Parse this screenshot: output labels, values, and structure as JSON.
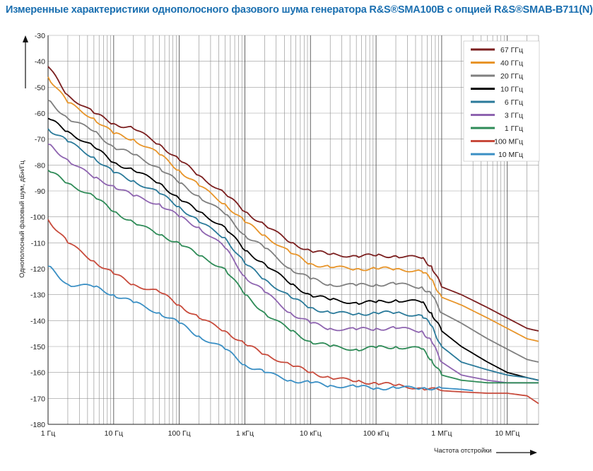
{
  "chart_data": {
    "type": "line",
    "title": "Измеренные характеристики однополосного фазового шума генератора R&S®SMA100B с опцией R&S®SMAB-B711(N)",
    "xlabel": "Частота отстройки",
    "ylabel": "Однополосный фазовый шум, дБн/Гц",
    "xscale": "log",
    "xlim": [
      1,
      30000000
    ],
    "ylim": [
      -180,
      -30
    ],
    "grid": true,
    "legend_position": "top-right",
    "x_ticks": [
      {
        "value": 1,
        "label": "1 Гц"
      },
      {
        "value": 10,
        "label": "10 Гц"
      },
      {
        "value": 100,
        "label": "100 Гц"
      },
      {
        "value": 1000,
        "label": "1 кГц"
      },
      {
        "value": 10000,
        "label": "10 кГц"
      },
      {
        "value": 100000,
        "label": "100 кГц"
      },
      {
        "value": 1000000,
        "label": "1 МГц"
      },
      {
        "value": 10000000,
        "label": "10 МГц"
      }
    ],
    "y_ticks": [
      {
        "value": -30,
        "label": "-30"
      },
      {
        "value": -40,
        "label": "-40"
      },
      {
        "value": -50,
        "label": "-50"
      },
      {
        "value": -60,
        "label": "-60"
      },
      {
        "value": -70,
        "label": "-70"
      },
      {
        "value": -80,
        "label": "-80"
      },
      {
        "value": -90,
        "label": "-90"
      },
      {
        "value": -100,
        "label": "-100"
      },
      {
        "value": -110,
        "label": "-110"
      },
      {
        "value": -120,
        "label": "-120"
      },
      {
        "value": -130,
        "label": "-130"
      },
      {
        "value": -140,
        "label": "-140"
      },
      {
        "value": -150,
        "label": "-150"
      },
      {
        "value": -160,
        "label": "-160"
      },
      {
        "value": -170,
        "label": "-170"
      },
      {
        "value": -180,
        "label": "-180"
      }
    ],
    "series": [
      {
        "name": "67 ГГц",
        "color": "#7b1f1f",
        "points": [
          [
            1,
            -42
          ],
          [
            2,
            -53
          ],
          [
            5,
            -60
          ],
          [
            10,
            -64
          ],
          [
            20,
            -66
          ],
          [
            50,
            -72
          ],
          [
            100,
            -78
          ],
          [
            200,
            -84
          ],
          [
            500,
            -91
          ],
          [
            1000,
            -98
          ],
          [
            2000,
            -103
          ],
          [
            5000,
            -110
          ],
          [
            10000,
            -113
          ],
          [
            20000,
            -114.5
          ],
          [
            50000,
            -115
          ],
          [
            100000,
            -115
          ],
          [
            200000,
            -115
          ],
          [
            500000,
            -116
          ],
          [
            700000,
            -119
          ],
          [
            1000000,
            -127
          ],
          [
            2000000,
            -130
          ],
          [
            5000000,
            -135
          ],
          [
            10000000,
            -139
          ],
          [
            20000000,
            -143
          ],
          [
            30000000,
            -144
          ]
        ]
      },
      {
        "name": "40 ГГц",
        "color": "#e8952a",
        "points": [
          [
            1,
            -46
          ],
          [
            2,
            -56
          ],
          [
            5,
            -62
          ],
          [
            10,
            -68
          ],
          [
            20,
            -70
          ],
          [
            50,
            -76
          ],
          [
            100,
            -82
          ],
          [
            200,
            -88
          ],
          [
            500,
            -95
          ],
          [
            1000,
            -102
          ],
          [
            2000,
            -107
          ],
          [
            5000,
            -114
          ],
          [
            10000,
            -118
          ],
          [
            20000,
            -119.5
          ],
          [
            50000,
            -120
          ],
          [
            100000,
            -120
          ],
          [
            200000,
            -120
          ],
          [
            500000,
            -121
          ],
          [
            700000,
            -124
          ],
          [
            1000000,
            -131
          ],
          [
            2000000,
            -134
          ],
          [
            5000000,
            -139
          ],
          [
            10000000,
            -143
          ],
          [
            20000000,
            -147
          ],
          [
            30000000,
            -148
          ]
        ]
      },
      {
        "name": "20 ГГц",
        "color": "#7f7f7f",
        "points": [
          [
            1,
            -55
          ],
          [
            2,
            -62
          ],
          [
            5,
            -67
          ],
          [
            10,
            -73
          ],
          [
            20,
            -76
          ],
          [
            50,
            -81
          ],
          [
            100,
            -87
          ],
          [
            200,
            -92
          ],
          [
            500,
            -99
          ],
          [
            1000,
            -107
          ],
          [
            2000,
            -112
          ],
          [
            5000,
            -120
          ],
          [
            10000,
            -124
          ],
          [
            20000,
            -126
          ],
          [
            50000,
            -126.5
          ],
          [
            100000,
            -126
          ],
          [
            200000,
            -126
          ],
          [
            500000,
            -127
          ],
          [
            700000,
            -130
          ],
          [
            1000000,
            -137
          ],
          [
            2000000,
            -141
          ],
          [
            5000000,
            -147
          ],
          [
            10000000,
            -151
          ],
          [
            20000000,
            -155
          ],
          [
            30000000,
            -156
          ]
        ]
      },
      {
        "name": "10 ГГц",
        "color": "#000000",
        "points": [
          [
            1,
            -62
          ],
          [
            2,
            -67
          ],
          [
            5,
            -73
          ],
          [
            10,
            -79
          ],
          [
            20,
            -82
          ],
          [
            50,
            -87
          ],
          [
            100,
            -93
          ],
          [
            200,
            -98
          ],
          [
            500,
            -104
          ],
          [
            1000,
            -113
          ],
          [
            2000,
            -118
          ],
          [
            5000,
            -126
          ],
          [
            10000,
            -130
          ],
          [
            20000,
            -132
          ],
          [
            50000,
            -133
          ],
          [
            100000,
            -133
          ],
          [
            200000,
            -132
          ],
          [
            500000,
            -133
          ],
          [
            700000,
            -137
          ],
          [
            1000000,
            -144
          ],
          [
            2000000,
            -150
          ],
          [
            5000000,
            -156
          ],
          [
            10000000,
            -160
          ],
          [
            20000000,
            -162
          ],
          [
            30000000,
            -163
          ]
        ]
      },
      {
        "name": "6 ГГц",
        "color": "#2a7a9a",
        "points": [
          [
            1,
            -66
          ],
          [
            2,
            -71
          ],
          [
            5,
            -77
          ],
          [
            10,
            -83
          ],
          [
            20,
            -86
          ],
          [
            50,
            -91
          ],
          [
            100,
            -96
          ],
          [
            200,
            -102
          ],
          [
            500,
            -108
          ],
          [
            1000,
            -118
          ],
          [
            2000,
            -124
          ],
          [
            5000,
            -131
          ],
          [
            10000,
            -135
          ],
          [
            20000,
            -137
          ],
          [
            50000,
            -137.5
          ],
          [
            100000,
            -137
          ],
          [
            200000,
            -137
          ],
          [
            500000,
            -138
          ],
          [
            700000,
            -142
          ],
          [
            1000000,
            -150
          ],
          [
            2000000,
            -156
          ],
          [
            5000000,
            -159
          ],
          [
            10000000,
            -161
          ],
          [
            20000000,
            -162
          ],
          [
            30000000,
            -163
          ]
        ]
      },
      {
        "name": "3 ГГц",
        "color": "#8e64b0",
        "points": [
          [
            1,
            -72
          ],
          [
            2,
            -78
          ],
          [
            5,
            -85
          ],
          [
            10,
            -88
          ],
          [
            20,
            -92
          ],
          [
            50,
            -95
          ],
          [
            100,
            -100
          ],
          [
            200,
            -104
          ],
          [
            500,
            -112
          ],
          [
            1000,
            -123
          ],
          [
            2000,
            -129
          ],
          [
            5000,
            -137
          ],
          [
            10000,
            -141
          ],
          [
            20000,
            -143
          ],
          [
            50000,
            -143.5
          ],
          [
            100000,
            -143
          ],
          [
            200000,
            -143
          ],
          [
            500000,
            -144
          ],
          [
            700000,
            -148
          ],
          [
            1000000,
            -156
          ],
          [
            2000000,
            -161
          ],
          [
            5000000,
            -163
          ],
          [
            10000000,
            -164
          ],
          [
            20000000,
            -164
          ],
          [
            30000000,
            -164
          ]
        ]
      },
      {
        "name": "1 ГГц",
        "color": "#2e8b57",
        "points": [
          [
            1,
            -82
          ],
          [
            2,
            -87
          ],
          [
            5,
            -92
          ],
          [
            10,
            -98
          ],
          [
            20,
            -102
          ],
          [
            50,
            -107
          ],
          [
            100,
            -110
          ],
          [
            200,
            -115
          ],
          [
            500,
            -120
          ],
          [
            1000,
            -130
          ],
          [
            2000,
            -137
          ],
          [
            5000,
            -144
          ],
          [
            10000,
            -148
          ],
          [
            20000,
            -150
          ],
          [
            50000,
            -151
          ],
          [
            100000,
            -150.5
          ],
          [
            200000,
            -150
          ],
          [
            500000,
            -151
          ],
          [
            700000,
            -155
          ],
          [
            1000000,
            -161
          ],
          [
            2000000,
            -163
          ],
          [
            5000000,
            -164
          ],
          [
            10000000,
            -164
          ],
          [
            20000000,
            -164
          ],
          [
            30000000,
            -164
          ]
        ]
      },
      {
        "name": "100 МГц",
        "color": "#c84b3c",
        "points": [
          [
            1,
            -101
          ],
          [
            2,
            -110
          ],
          [
            5,
            -117
          ],
          [
            10,
            -122
          ],
          [
            20,
            -126
          ],
          [
            50,
            -129
          ],
          [
            100,
            -134
          ],
          [
            200,
            -139
          ],
          [
            500,
            -144
          ],
          [
            1000,
            -149
          ],
          [
            2000,
            -153
          ],
          [
            5000,
            -157
          ],
          [
            10000,
            -160
          ],
          [
            20000,
            -162
          ],
          [
            50000,
            -163.5
          ],
          [
            100000,
            -164
          ],
          [
            200000,
            -165
          ],
          [
            500000,
            -166
          ],
          [
            1000000,
            -167
          ],
          [
            2000000,
            -167.5
          ],
          [
            5000000,
            -168
          ],
          [
            10000000,
            -168
          ],
          [
            20000000,
            -169
          ],
          [
            30000000,
            -172
          ]
        ]
      },
      {
        "name": "10 МГц",
        "color": "#3a8fc4",
        "points": [
          [
            1,
            -119
          ],
          [
            2,
            -126
          ],
          [
            5,
            -127
          ],
          [
            10,
            -130
          ],
          [
            20,
            -133
          ],
          [
            50,
            -137
          ],
          [
            100,
            -141
          ],
          [
            200,
            -146
          ],
          [
            500,
            -151
          ],
          [
            1000,
            -157
          ],
          [
            2000,
            -160
          ],
          [
            5000,
            -163
          ],
          [
            10000,
            -164
          ],
          [
            20000,
            -165
          ],
          [
            50000,
            -165.5
          ],
          [
            100000,
            -166
          ],
          [
            200000,
            -166
          ],
          [
            500000,
            -166
          ],
          [
            1000000,
            -166
          ],
          [
            2000000,
            -166.5
          ],
          [
            3000000,
            -167
          ]
        ]
      }
    ]
  }
}
